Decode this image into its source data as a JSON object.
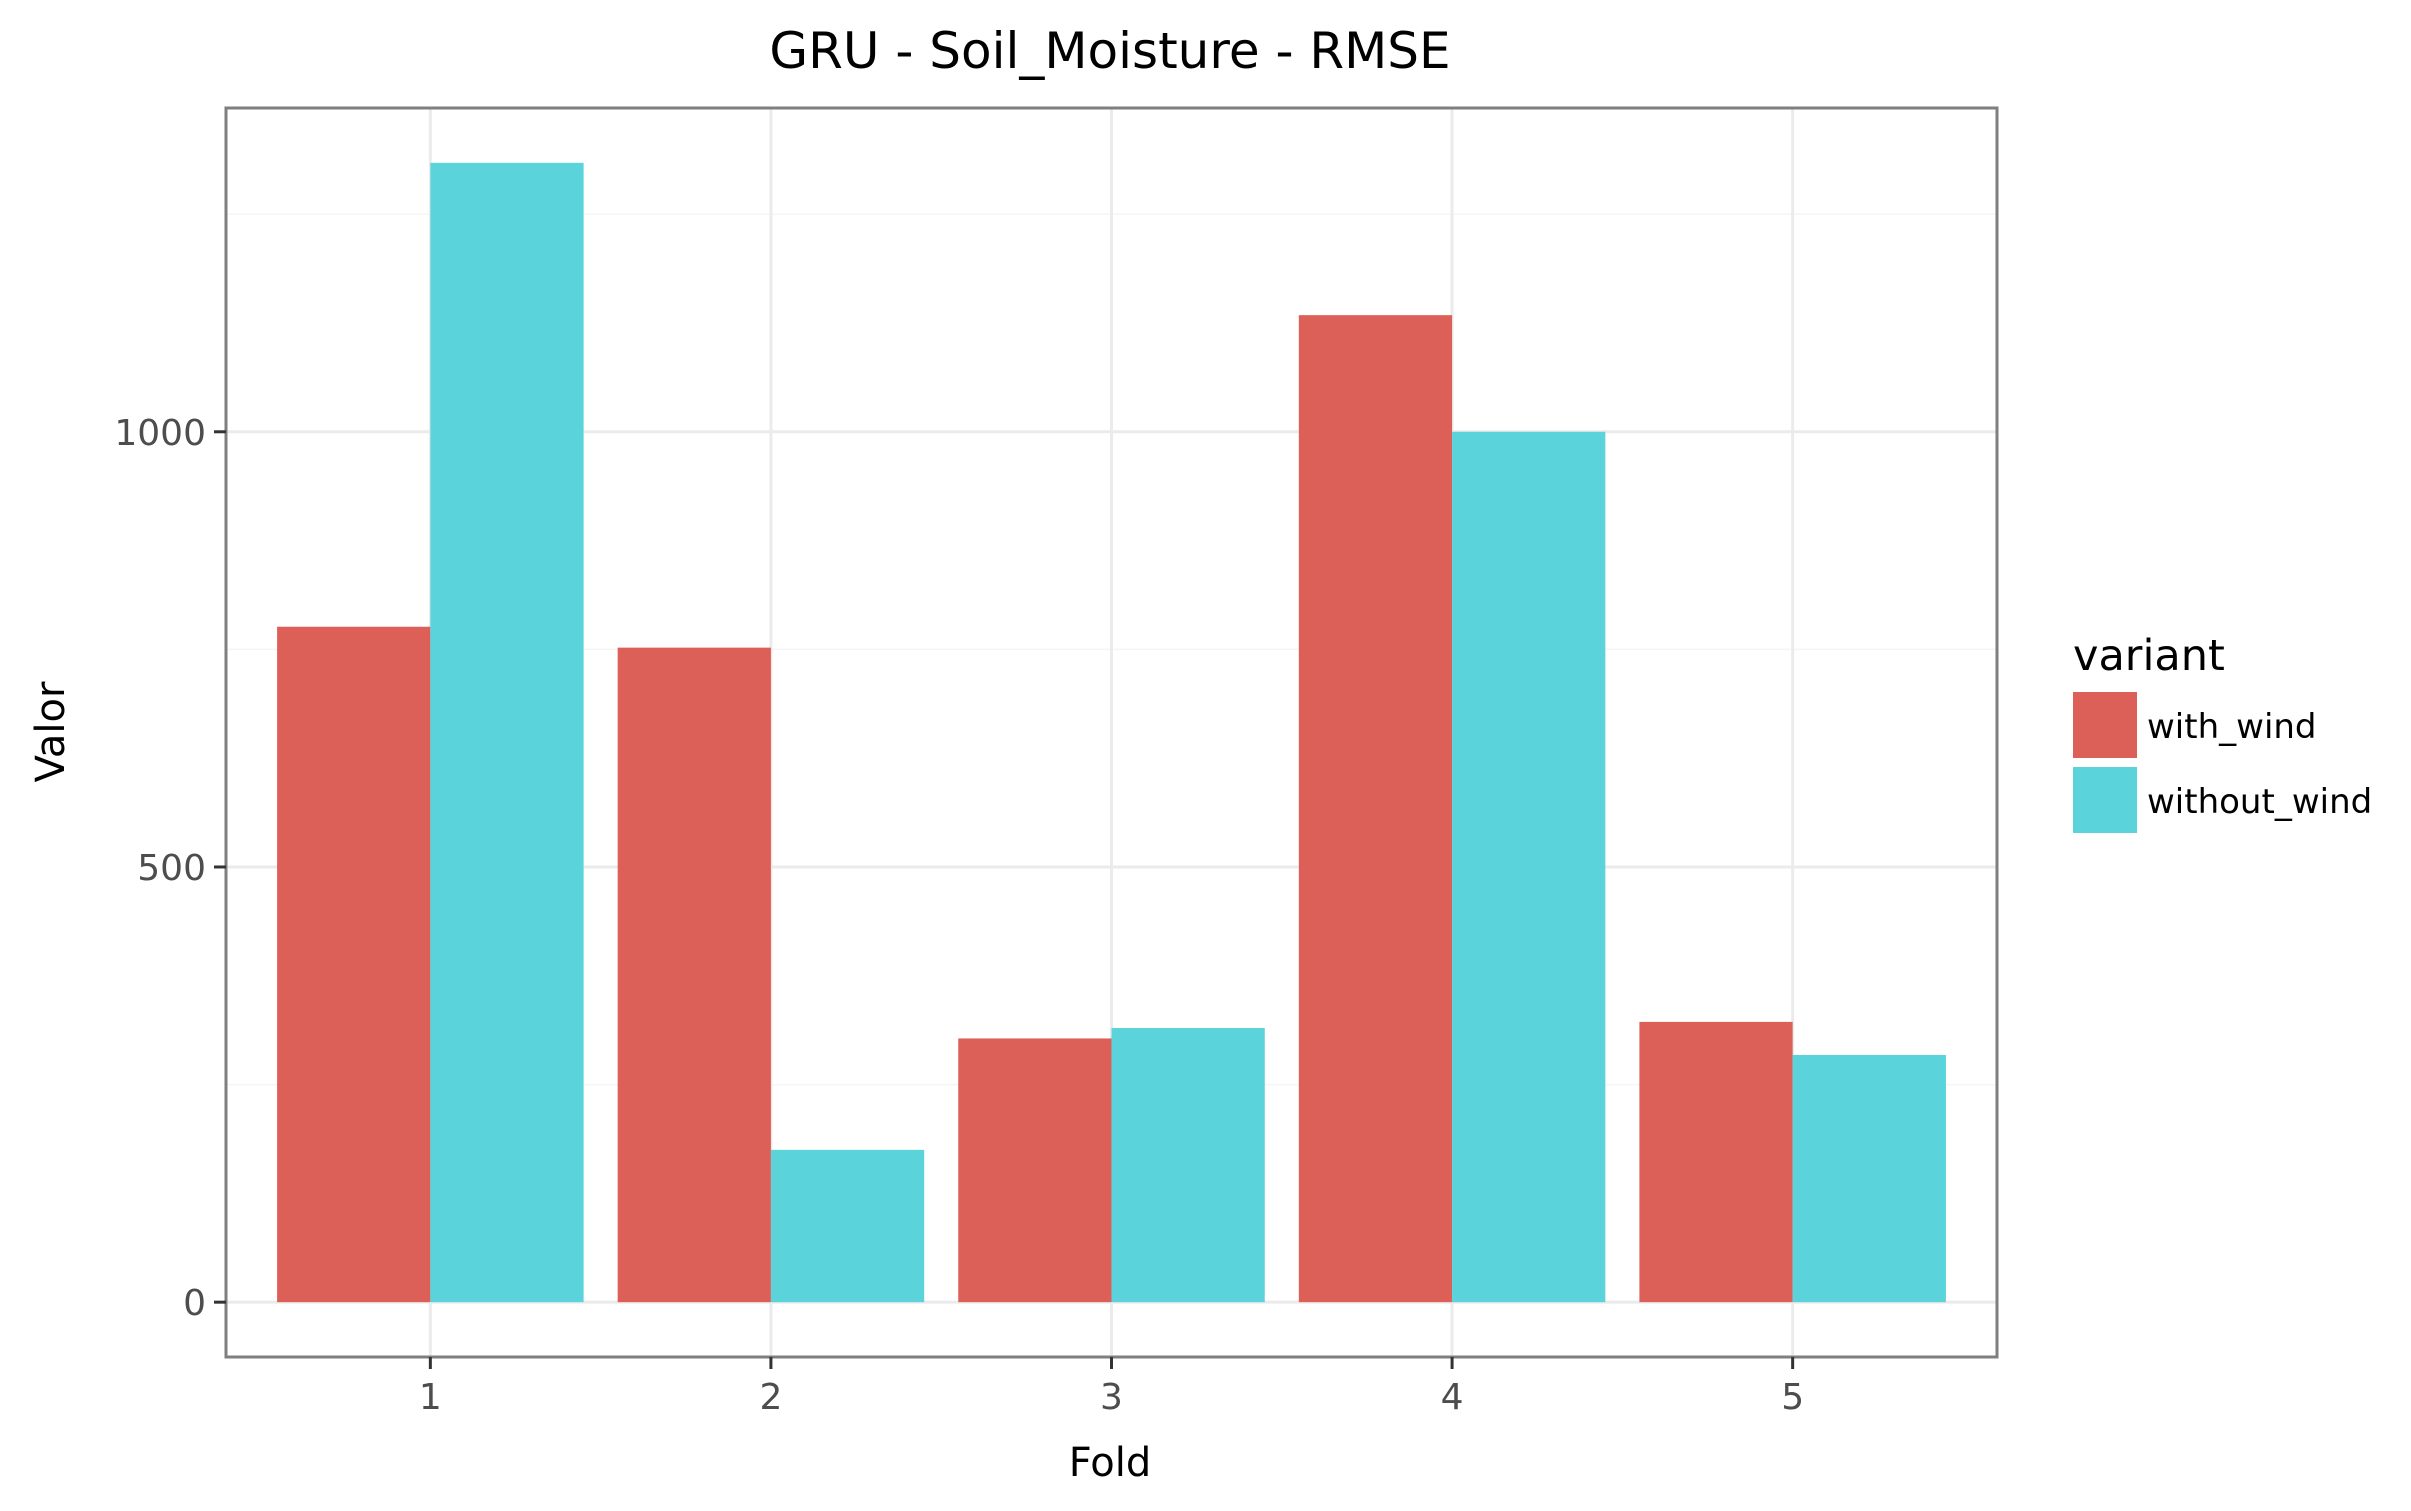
{
  "chart_data": {
    "type": "bar",
    "title": "GRU - Soil_Moisture - RMSE",
    "xlabel": "Fold",
    "ylabel": "Valor",
    "categories": [
      "1",
      "2",
      "3",
      "4",
      "5"
    ],
    "series": [
      {
        "name": "with_wind",
        "color": "#dd6058",
        "values": [
          776,
          752,
          303,
          1134,
          322
        ]
      },
      {
        "name": "without_wind",
        "color": "#5bd3db",
        "values": [
          1309,
          175,
          315,
          1000,
          284
        ]
      }
    ],
    "y_ticks": [
      0,
      500,
      1000
    ],
    "ylim": [
      -63,
      1372
    ],
    "grid": true,
    "legend": {
      "title": "variant",
      "position": "right"
    }
  }
}
